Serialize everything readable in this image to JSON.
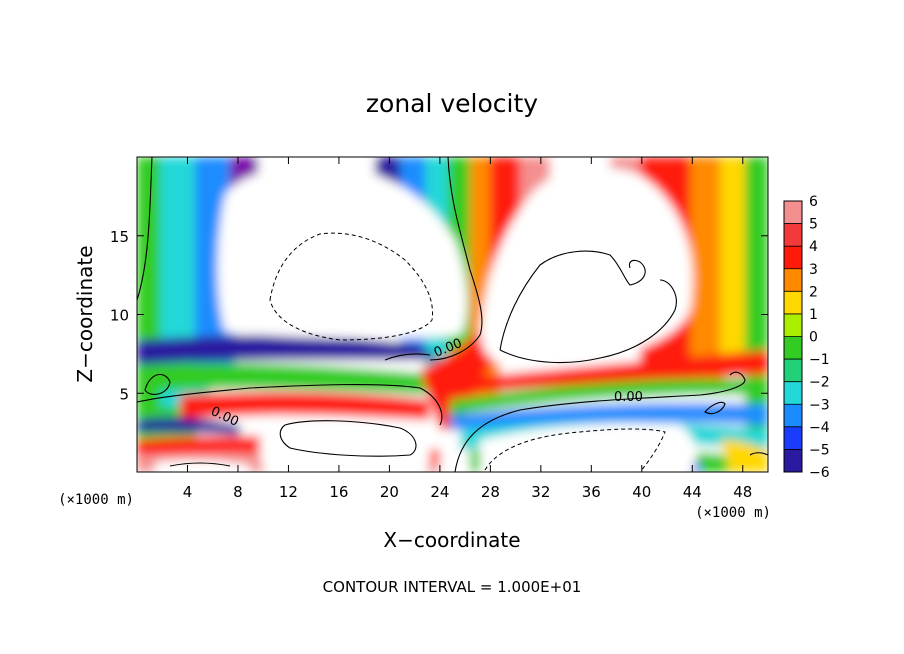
{
  "chart_data": {
    "type": "heatmap",
    "title": "zonal velocity",
    "xlabel": "X−coordinate",
    "ylabel": "Z−coordinate",
    "x_unit_left": "(×1000 m)",
    "x_unit_right": "(×1000 m)",
    "xlim": [
      0,
      50
    ],
    "ylim": [
      0,
      20
    ],
    "x_ticks": [
      4,
      8,
      12,
      16,
      20,
      24,
      28,
      32,
      36,
      40,
      44,
      48
    ],
    "x_tick_labels": [
      "4",
      "8",
      "12",
      "16",
      "20",
      "24",
      "28",
      "32",
      "36",
      "40",
      "44",
      "48"
    ],
    "y_ticks": [
      5,
      10,
      15
    ],
    "y_tick_labels": [
      "5",
      "10",
      "15"
    ],
    "colorbar": {
      "levels": [
        6,
        5,
        4,
        3,
        2,
        1,
        0,
        -1,
        -2,
        -3,
        -4,
        -5,
        -6
      ],
      "labels": [
        "6",
        "5",
        "4",
        "3",
        "2",
        "1",
        "0",
        "−1",
        "−2",
        "−3",
        "−4",
        "−5",
        "−6"
      ],
      "colors": [
        "#f48f8f",
        "#f23a3a",
        "#ff1a0a",
        "#ff8a00",
        "#ffd800",
        "#aaee00",
        "#33cc22",
        "#22d07a",
        "#22d8d8",
        "#1a8cff",
        "#1a3cff",
        "#2a1aa0",
        "#7a10aa"
      ]
    },
    "contour_labels": [
      "0.00",
      "0.00",
      "0.00"
    ],
    "footer": "CONTOUR INTERVAL = 1.000E+01"
  }
}
